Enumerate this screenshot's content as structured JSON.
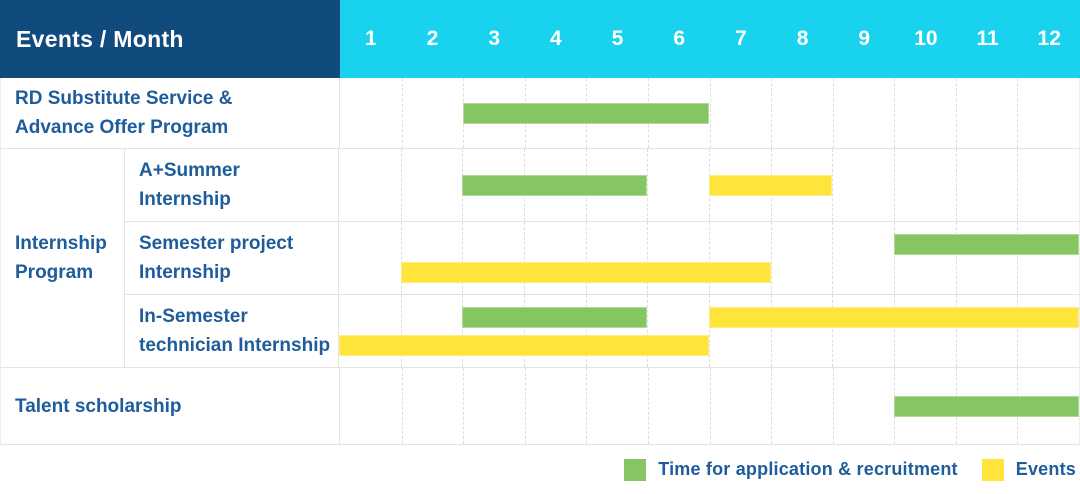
{
  "chart_data": {
    "type": "gantt",
    "header_label": "Events / Month",
    "months": [
      "1",
      "2",
      "3",
      "4",
      "5",
      "6",
      "7",
      "8",
      "9",
      "10",
      "11",
      "12"
    ],
    "x_axis": {
      "label": "Month",
      "range": [
        1,
        12
      ]
    },
    "colors": {
      "header_bg": "#114B7E",
      "months_bg": "#18D2EE",
      "application_bar": "#85C663",
      "event_bar": "#FFE43C",
      "label_text": "#1E5C9B",
      "grid_line": "#E3E3E3"
    },
    "legend": [
      {
        "kind": "application",
        "label": "Time for application & recruitment"
      },
      {
        "kind": "event",
        "label": "Events"
      }
    ],
    "sections": [
      {
        "group_label_lines": [],
        "rows": [
          {
            "name": "RD Substitute Service & Advance Offer Program",
            "label_lines": [
              "RD Substitute Service &",
              "Advance Offer Program"
            ],
            "lines": [
              [
                {
                  "kind": "application",
                  "start": 3,
                  "end": 6
                }
              ]
            ]
          }
        ]
      },
      {
        "group_label_lines": [
          "Internship",
          "Program"
        ],
        "rows": [
          {
            "name": "A+Summer Internship",
            "label_lines": [
              "A+Summer",
              "Internship"
            ],
            "lines": [
              [
                {
                  "kind": "application",
                  "start": 3,
                  "end": 5
                },
                {
                  "kind": "event",
                  "start": 7,
                  "end": 8
                }
              ]
            ]
          },
          {
            "name": "Semester project Internship",
            "label_lines": [
              "Semester project",
              "Internship"
            ],
            "lines": [
              [
                {
                  "kind": "application",
                  "start": 10,
                  "end": 12
                }
              ],
              [
                {
                  "kind": "event",
                  "start": 2,
                  "end": 7
                }
              ]
            ]
          },
          {
            "name": "In-Semester technician Internship",
            "label_lines": [
              "In-Semester",
              "technician Internship"
            ],
            "lines": [
              [
                {
                  "kind": "application",
                  "start": 3,
                  "end": 5
                },
                {
                  "kind": "event",
                  "start": 7,
                  "end": 12
                }
              ],
              [
                {
                  "kind": "event",
                  "start": 1,
                  "end": 6
                }
              ]
            ]
          }
        ]
      },
      {
        "group_label_lines": [],
        "rows": [
          {
            "name": "Talent scholarship",
            "label_lines": [
              "Talent scholarship"
            ],
            "lines": [
              [
                {
                  "kind": "application",
                  "start": 10,
                  "end": 12
                }
              ]
            ]
          }
        ]
      }
    ]
  }
}
